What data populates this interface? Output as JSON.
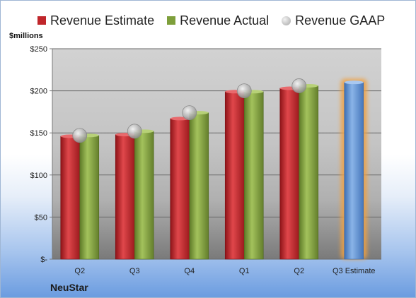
{
  "unit_label": "$millions",
  "company": "NeuStar",
  "colors": {
    "estimate": "#c0262b",
    "actual": "#7e9f3b",
    "gaap": "#b8b8b8",
    "projection": "#5b8fd1",
    "highlight": "#f0a040"
  },
  "chart_data": {
    "type": "bar",
    "categories": [
      "Q2",
      "Q3",
      "Q4",
      "Q1",
      "Q2",
      "Q3 Estimate"
    ],
    "series": [
      {
        "name": "Revenue Estimate",
        "values": [
          146,
          148,
          167,
          199,
          203,
          210
        ]
      },
      {
        "name": "Revenue Actual",
        "values": [
          147,
          152,
          174,
          199,
          206,
          null
        ]
      },
      {
        "name": "Revenue GAAP",
        "values": [
          147,
          152,
          174,
          200,
          206,
          null
        ]
      }
    ],
    "ylim": [
      0,
      250
    ],
    "yticks": [
      0,
      50,
      100,
      150,
      200,
      250
    ],
    "ytick_labels": [
      "$-",
      "$50",
      "$100",
      "$150",
      "$200",
      "$250"
    ],
    "grid": true,
    "legend": "top"
  }
}
